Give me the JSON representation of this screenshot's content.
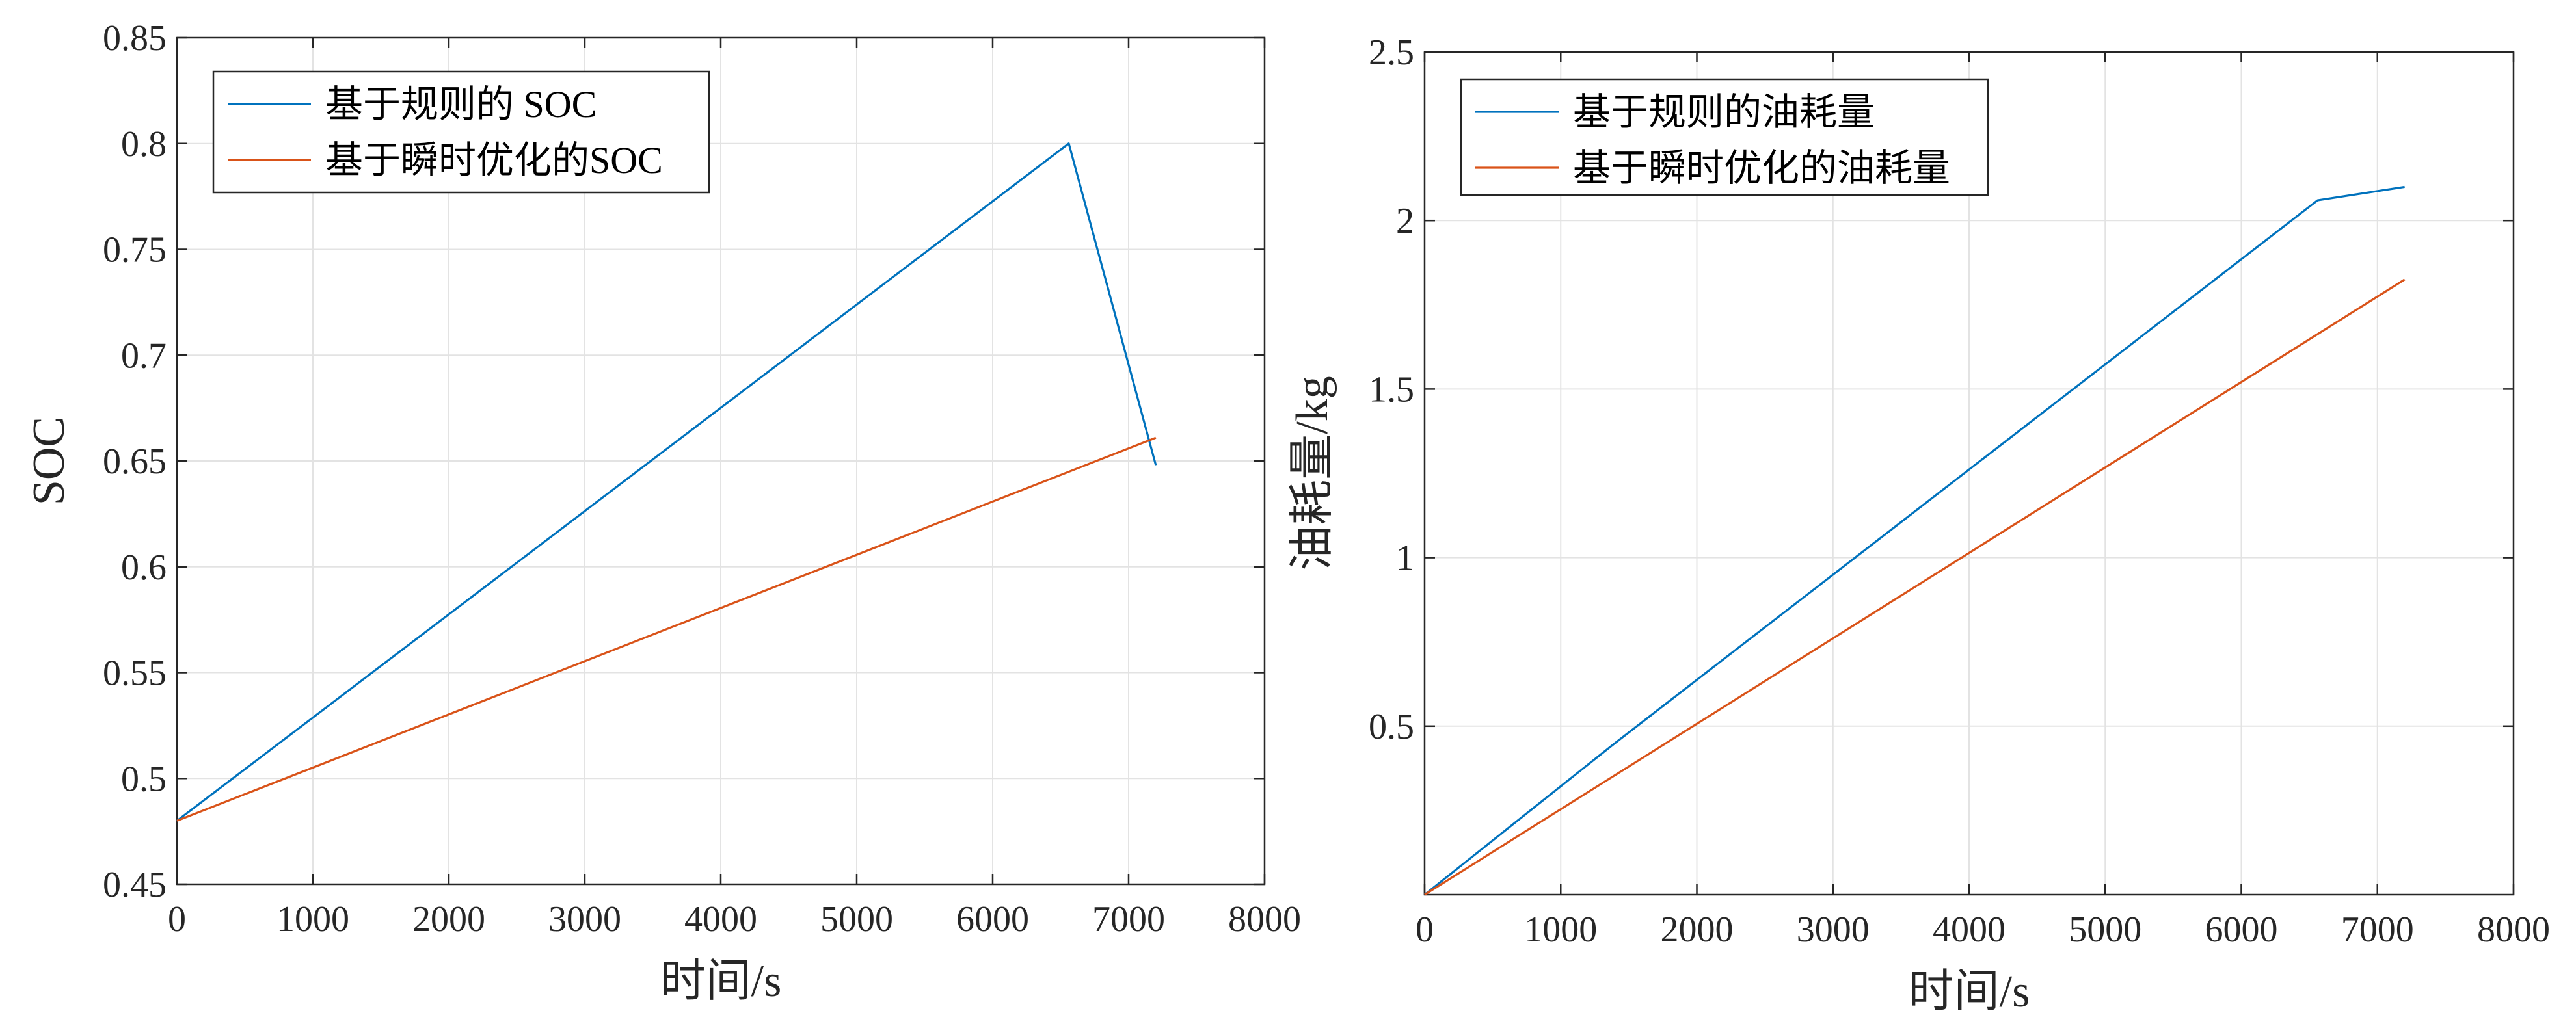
{
  "chart_data": [
    {
      "type": "line",
      "xlabel": "时间/s",
      "ylabel": "SOC",
      "xlim": [
        0,
        8000
      ],
      "ylim": [
        0.45,
        0.85
      ],
      "xticks": [
        0,
        1000,
        2000,
        3000,
        4000,
        5000,
        6000,
        7000,
        8000
      ],
      "yticks": [
        0.45,
        0.5,
        0.55,
        0.6,
        0.65,
        0.7,
        0.75,
        0.8,
        0.85
      ],
      "xtick_labels": [
        "0",
        "1000",
        "2000",
        "3000",
        "4000",
        "5000",
        "6000",
        "7000",
        "8000"
      ],
      "ytick_labels": [
        "0.45",
        "0.5",
        "0.55",
        "0.6",
        "0.65",
        "0.7",
        "0.75",
        "0.8",
        "0.85"
      ],
      "grid": true,
      "legend_position": "top-left",
      "series": [
        {
          "name": "基于规则的 SOC",
          "color": "#0072BD",
          "x": [
            0,
            6560,
            7200
          ],
          "y": [
            0.48,
            0.8,
            0.648
          ]
        },
        {
          "name": "基于瞬时优化的SOC",
          "color": "#D95319",
          "x": [
            0,
            7200
          ],
          "y": [
            0.48,
            0.661
          ]
        }
      ]
    },
    {
      "type": "line",
      "xlabel": "时间/s",
      "ylabel": "油耗量/kg",
      "xlim": [
        0,
        8000
      ],
      "ylim": [
        0,
        2.5
      ],
      "xticks": [
        0,
        1000,
        2000,
        3000,
        4000,
        5000,
        6000,
        7000,
        8000
      ],
      "yticks": [
        0.5,
        1,
        1.5,
        2,
        2.5
      ],
      "xtick_labels": [
        "0",
        "1000",
        "2000",
        "3000",
        "4000",
        "5000",
        "6000",
        "7000",
        "8000"
      ],
      "ytick_labels": [
        "0.5",
        "1",
        "1.5",
        "2",
        "2.5"
      ],
      "grid": true,
      "legend_position": "top-left",
      "series": [
        {
          "name": "基于规则的油耗量",
          "color": "#0072BD",
          "x": [
            0,
            1400,
            6560,
            7200
          ],
          "y": [
            0,
            0.45,
            2.06,
            2.1
          ]
        },
        {
          "name": "基于瞬时优化的油耗量",
          "color": "#D95319",
          "x": [
            0,
            7200
          ],
          "y": [
            0,
            1.825
          ]
        }
      ]
    }
  ]
}
